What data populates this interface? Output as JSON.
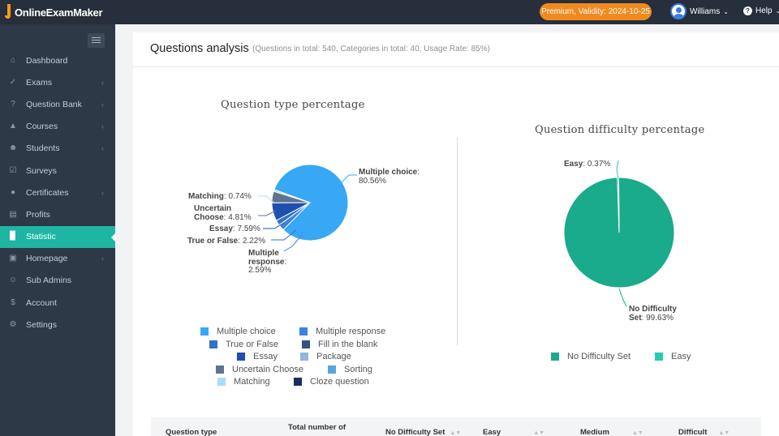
{
  "app": {
    "logo_text": "OnlineExamMaker",
    "premium_badge": "Premium, Validity: 2024-10-25",
    "user_name": "Williams",
    "help_label": "Help"
  },
  "sidebar": {
    "items": [
      {
        "label": "Dashboard",
        "icon": "home-icon",
        "has_arrow": false
      },
      {
        "label": "Exams",
        "icon": "check-circle-icon",
        "has_arrow": true
      },
      {
        "label": "Question Bank",
        "icon": "question-icon",
        "has_arrow": true
      },
      {
        "label": "Courses",
        "icon": "graduation-cap-icon",
        "has_arrow": true
      },
      {
        "label": "Students",
        "icon": "users-icon",
        "has_arrow": true
      },
      {
        "label": "Surveys",
        "icon": "checkbox-icon",
        "has_arrow": false
      },
      {
        "label": "Certificates",
        "icon": "certificate-icon",
        "has_arrow": true
      },
      {
        "label": "Profits",
        "icon": "card-icon",
        "has_arrow": false
      },
      {
        "label": "Statistic",
        "icon": "bar-chart-icon",
        "has_arrow": false,
        "active": true
      },
      {
        "label": "Homepage",
        "icon": "homepage-icon",
        "has_arrow": true
      },
      {
        "label": "Sub Admins",
        "icon": "user-circle-icon",
        "has_arrow": false
      },
      {
        "label": "Account",
        "icon": "dollar-icon",
        "has_arrow": false
      },
      {
        "label": "Settings",
        "icon": "gear-icon",
        "has_arrow": false
      }
    ]
  },
  "page": {
    "title": "Questions analysis",
    "subtitle": "(Questions in total: 540, Categories in total: 40, Usage Rate: 85%)"
  },
  "chart_data": [
    {
      "type": "pie",
      "title": "Question type percentage",
      "legend_position": "bottom",
      "slices": [
        {
          "name": "Multiple choice",
          "value": 80.56,
          "label": "80.56%",
          "color": "#38a8f5"
        },
        {
          "name": "Multiple response",
          "value": 2.59,
          "label": "2.59%",
          "color": "#3d82e3"
        },
        {
          "name": "True or False",
          "value": 2.22,
          "label": "2.22%",
          "color": "#2e73c4"
        },
        {
          "name": "Fill in the blank",
          "value": 0,
          "color": "#36507d"
        },
        {
          "name": "Essay",
          "value": 7.59,
          "label": "7.59%",
          "color": "#1f4fb0"
        },
        {
          "name": "Package",
          "value": 0,
          "color": "#96b4e0"
        },
        {
          "name": "Uncertain Choose",
          "value": 4.81,
          "label": "4.81%",
          "color": "#5f7391"
        },
        {
          "name": "Sorting",
          "value": 0,
          "color": "#5aa5de"
        },
        {
          "name": "Matching",
          "value": 0.74,
          "label": "0.74%",
          "color": "#a9dcf7"
        },
        {
          "name": "Cloze question",
          "value": 0,
          "color": "#1d2d5e"
        }
      ],
      "callouts": {
        "multiple_choice": {
          "name": "Multiple choice",
          "value": "80.56%"
        },
        "matching": {
          "name": "Matching",
          "value": "0.74%"
        },
        "uncertain_line1": "Uncertain",
        "uncertain_line2": "Choose",
        "uncertain_value": "4.81%",
        "essay": {
          "name": "Essay",
          "value": "7.59%"
        },
        "true_false": {
          "name": "True or False",
          "value": "2.22%"
        },
        "multi_resp_line1": "Multiple",
        "multi_resp_line2": "response",
        "multi_resp_value": "2.59%"
      }
    },
    {
      "type": "pie",
      "title": "Question difficulty percentage",
      "legend_position": "bottom",
      "slices": [
        {
          "name": "No Difficulty Set",
          "value": 99.63,
          "label": "99.63%",
          "color": "#1aaa8c"
        },
        {
          "name": "Easy",
          "value": 0.37,
          "label": "0.37%",
          "color": "#26cbb5"
        }
      ],
      "callouts": {
        "easy": {
          "name": "Easy",
          "value": "0.37%"
        },
        "nodiff_line1": "No Difficulty",
        "nodiff_line2": "Set",
        "nodiff_value": "99.63%"
      }
    }
  ],
  "table": {
    "headers": [
      "Question type",
      "Total number of",
      "No Difficulty Set",
      "Easy",
      "Medium",
      "Difficult"
    ]
  }
}
